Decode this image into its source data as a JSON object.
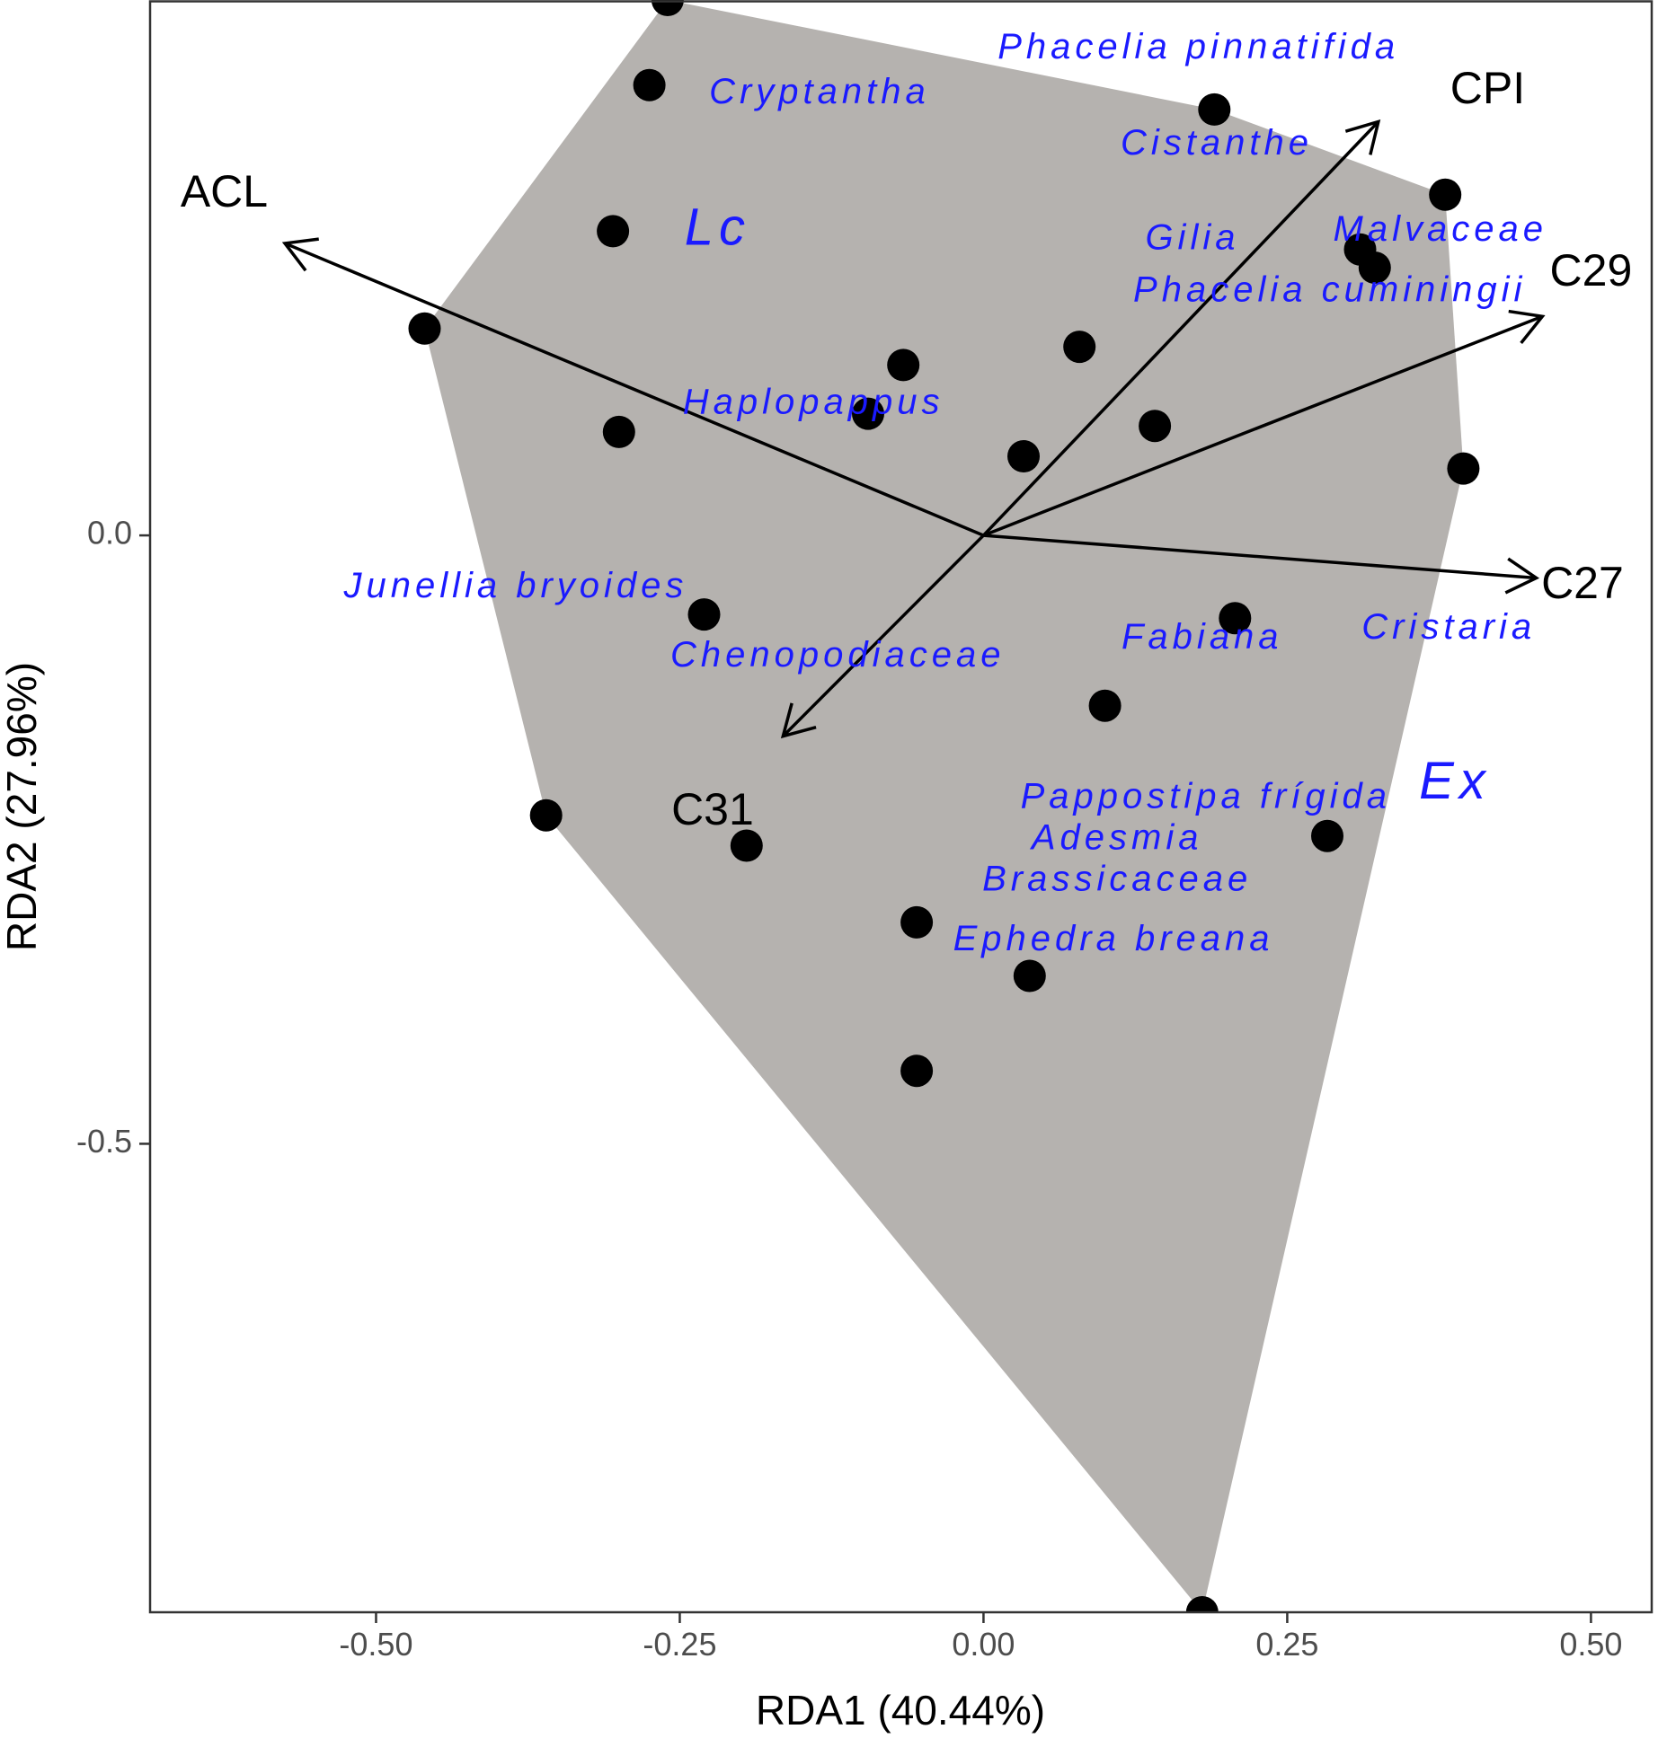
{
  "chart_data": {
    "type": "scatter",
    "xlabel": "RDA1 (40.44%)",
    "ylabel": "RDA2 (27.96%)",
    "xlim": [
      -0.686,
      0.55
    ],
    "ylim": [
      -0.885,
      0.44
    ],
    "x_ticks": [
      {
        "value": -0.5,
        "label": "-0.50"
      },
      {
        "value": -0.25,
        "label": "-0.25"
      },
      {
        "value": 0.0,
        "label": "0.00"
      },
      {
        "value": 0.25,
        "label": "0.25"
      },
      {
        "value": 0.5,
        "label": "0.50"
      }
    ],
    "y_ticks": [
      {
        "value": 0.0,
        "label": "0.0"
      },
      {
        "value": -0.5,
        "label": "-0.5"
      }
    ],
    "grid": false,
    "hull_fill": "#b5b2af",
    "point_color": "#000000",
    "taxon_color": "#1a1aff",
    "hull": [
      [
        -0.26,
        0.44
      ],
      [
        0.19,
        0.35
      ],
      [
        0.38,
        0.28
      ],
      [
        0.395,
        0.055
      ],
      [
        0.18,
        -0.885
      ],
      [
        -0.36,
        -0.23
      ],
      [
        -0.46,
        0.17
      ]
    ],
    "points": [
      {
        "x": -0.26,
        "y": 0.44
      },
      {
        "x": -0.275,
        "y": 0.37
      },
      {
        "x": 0.19,
        "y": 0.35
      },
      {
        "x": 0.38,
        "y": 0.28
      },
      {
        "x": -0.305,
        "y": 0.25
      },
      {
        "x": 0.31,
        "y": 0.235
      },
      {
        "x": 0.322,
        "y": 0.22
      },
      {
        "x": -0.46,
        "y": 0.17
      },
      {
        "x": -0.066,
        "y": 0.14
      },
      {
        "x": 0.079,
        "y": 0.155
      },
      {
        "x": -0.095,
        "y": 0.1
      },
      {
        "x": 0.141,
        "y": 0.09
      },
      {
        "x": -0.3,
        "y": 0.085
      },
      {
        "x": 0.033,
        "y": 0.065
      },
      {
        "x": 0.395,
        "y": 0.055
      },
      {
        "x": -0.23,
        "y": -0.065
      },
      {
        "x": 0.207,
        "y": -0.068
      },
      {
        "x": 0.1,
        "y": -0.14
      },
      {
        "x": -0.36,
        "y": -0.23
      },
      {
        "x": -0.195,
        "y": -0.255
      },
      {
        "x": 0.283,
        "y": -0.247
      },
      {
        "x": -0.055,
        "y": -0.318
      },
      {
        "x": 0.038,
        "y": -0.362
      },
      {
        "x": -0.055,
        "y": -0.44
      },
      {
        "x": 0.18,
        "y": -0.885
      }
    ],
    "arrows": [
      {
        "label": "ACL",
        "x": -0.575,
        "y": 0.24,
        "label_x": -0.625,
        "label_y": 0.28
      },
      {
        "label": "CPI",
        "x": 0.325,
        "y": 0.34,
        "label_x": 0.415,
        "label_y": 0.365
      },
      {
        "label": "C29",
        "x": 0.46,
        "y": 0.18,
        "label_x": 0.5,
        "label_y": 0.215
      },
      {
        "label": "C27",
        "x": 0.455,
        "y": -0.035,
        "label_x": 0.493,
        "label_y": -0.042
      },
      {
        "label": "C31",
        "x": -0.165,
        "y": -0.165,
        "label_x": -0.223,
        "label_y": -0.228
      }
    ],
    "taxa": [
      {
        "label": "Phacelia pinnatifida",
        "x": 0.177,
        "y": 0.4
      },
      {
        "label": "Cryptantha",
        "x": -0.135,
        "y": 0.363
      },
      {
        "label": "Cistanthe",
        "x": 0.192,
        "y": 0.321
      },
      {
        "label": "Gilia",
        "x": 0.172,
        "y": 0.243
      },
      {
        "label": "Malvaceae",
        "x": 0.376,
        "y": 0.25
      },
      {
        "label": "Phacelia cuminingii",
        "x": 0.285,
        "y": 0.2
      },
      {
        "label": "Haplopappus",
        "x": -0.14,
        "y": 0.108
      },
      {
        "label": "Junellia bryoides",
        "x": -0.385,
        "y": -0.043
      },
      {
        "label": "Chenopodiaceae",
        "x": -0.12,
        "y": -0.1
      },
      {
        "label": "Fabiana",
        "x": 0.18,
        "y": -0.085
      },
      {
        "label": "Cristaria",
        "x": 0.383,
        "y": -0.077
      },
      {
        "label": "Pappostipa frígida",
        "x": 0.183,
        "y": -0.216
      },
      {
        "label": "Adesmia",
        "x": 0.11,
        "y": -0.25
      },
      {
        "label": "Brassicaceae",
        "x": 0.11,
        "y": -0.284
      },
      {
        "label": "Ephedra breana",
        "x": 0.107,
        "y": -0.333
      }
    ],
    "groups": [
      {
        "label": "Lc",
        "x": -0.219,
        "y": 0.25
      },
      {
        "label": "Ex",
        "x": 0.388,
        "y": -0.205
      }
    ]
  }
}
